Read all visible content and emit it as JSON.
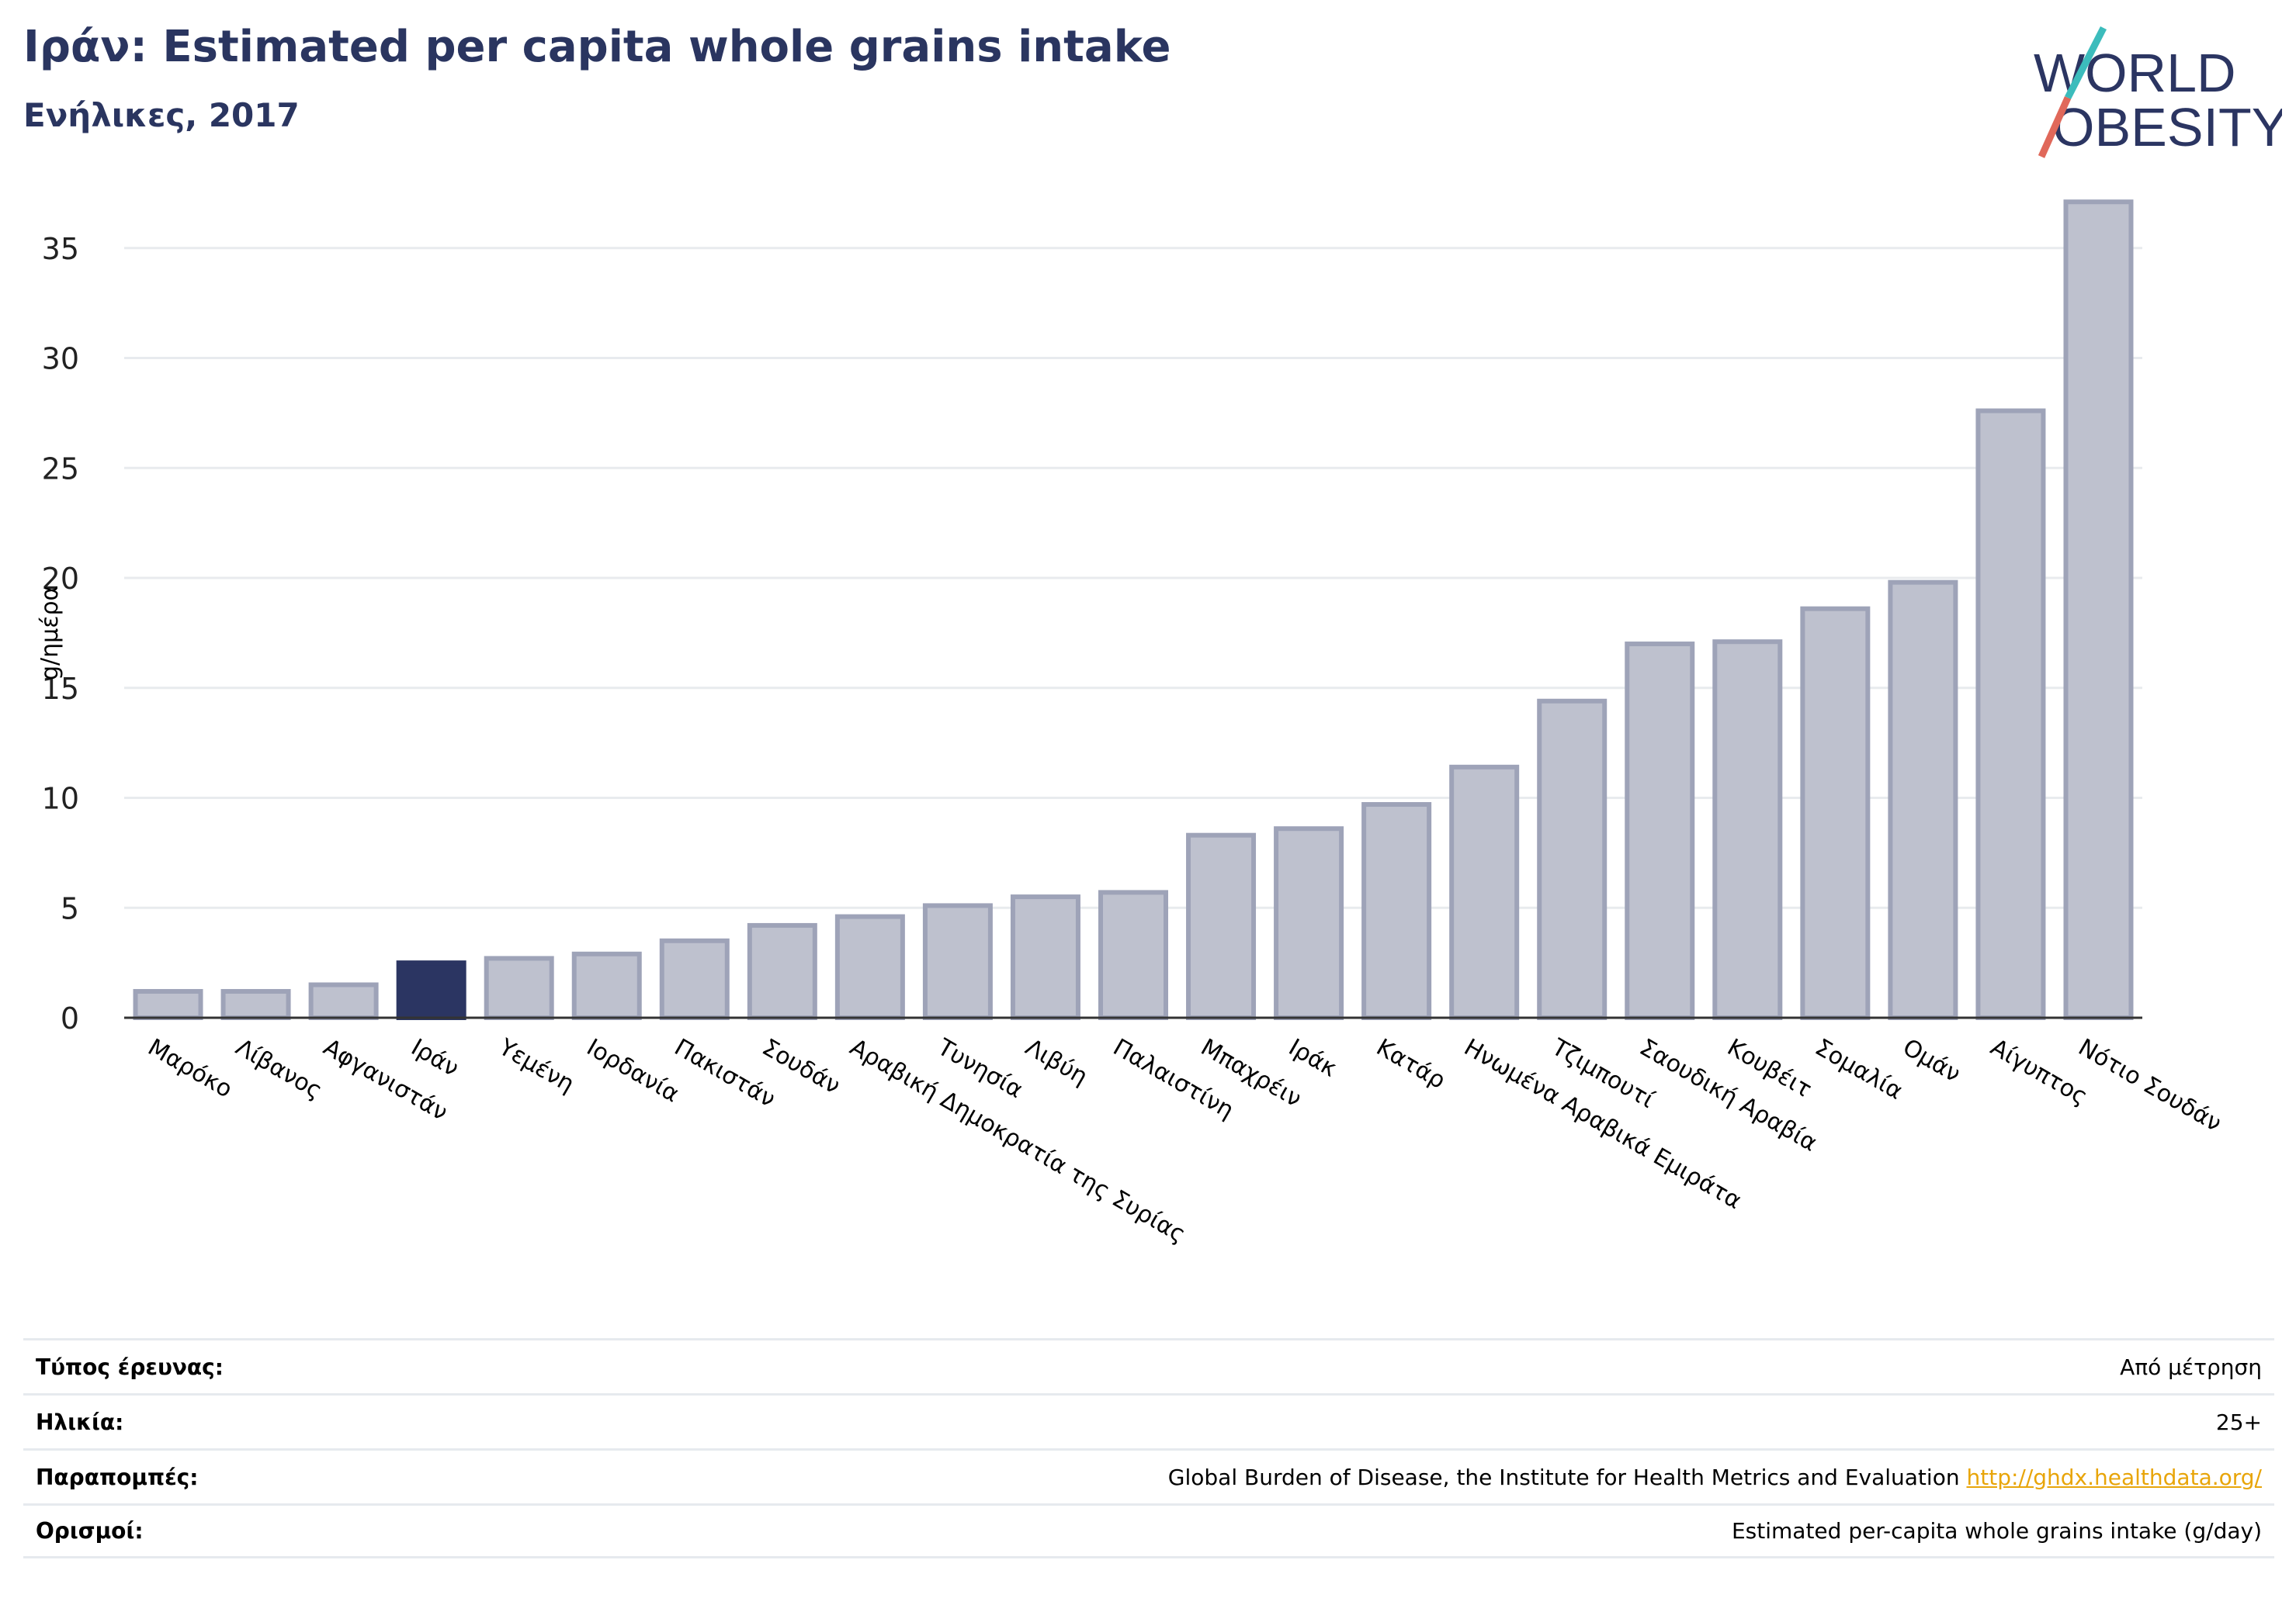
{
  "header": {
    "title": "Ιράν: Estimated per capita whole grains intake",
    "subtitle": "Ενήλικες, 2017"
  },
  "logo": {
    "line1": "WORLD",
    "line2": "OBESITY"
  },
  "colors": {
    "highlight": "#2b3562",
    "bar_fill": "#bec1ce",
    "bar_stroke": "#9ea3b8",
    "axis_text": "#222222"
  },
  "chart_data": {
    "type": "bar",
    "ylabel": "g/ημέρα",
    "ylim": [
      0,
      38
    ],
    "yticks": [
      0,
      5,
      10,
      15,
      20,
      25,
      30,
      35
    ],
    "grid": true,
    "highlight": "Ιράν",
    "categories": [
      "Μαρόκο",
      "Λίβανος",
      "Αφγανιστάν",
      "Ιράν",
      "Υεμένη",
      "Ιορδανία",
      "Πακιστάν",
      "Σουδάν",
      "Αραβική Δημοκρατία της Συρίας",
      "Τυνησία",
      "Λιβύη",
      "Παλαιστίνη",
      "Μπαχρέιν",
      "Ιράκ",
      "Κατάρ",
      "Ηνωμένα Αραβικά Εμιράτα",
      "Τζιμπουτί",
      "Σαουδική Αραβία",
      "Κουβέιτ",
      "Σομαλία",
      "Ομάν",
      "Αίγυπτος",
      "Νότιο Σουδάν"
    ],
    "values": [
      1.2,
      1.2,
      1.5,
      2.5,
      2.7,
      2.9,
      3.5,
      4.2,
      4.6,
      5.1,
      5.5,
      5.7,
      8.3,
      8.6,
      9.7,
      11.4,
      14.4,
      17.0,
      17.1,
      18.6,
      19.8,
      27.6,
      37.1
    ]
  },
  "footer": {
    "rows": [
      {
        "label": "Τύπος έρευνας:",
        "value": "Από μέτρηση"
      },
      {
        "label": "Ηλικία:",
        "value": "25+"
      },
      {
        "label": "Παραπομπές:",
        "value": "Global Burden of Disease, the Institute for Health Metrics and Evaluation",
        "link": "http://ghdx.healthdata.org/"
      },
      {
        "label": "Ορισμοί:",
        "value": "Estimated per-capita whole grains intake (g/day)"
      }
    ]
  }
}
